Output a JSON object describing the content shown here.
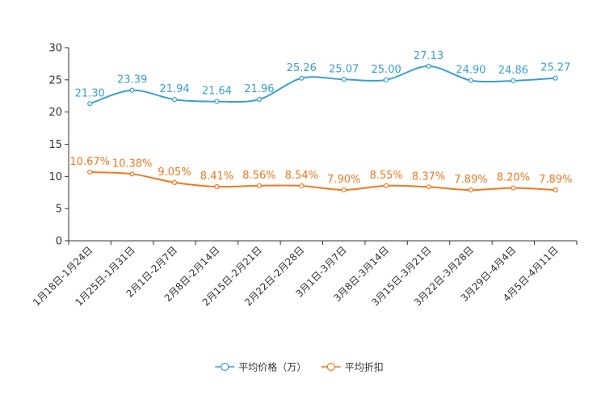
{
  "chart_data": {
    "type": "line",
    "title": "",
    "xlabel": "",
    "ylabel": "",
    "ylim": [
      0,
      30
    ],
    "yticks": [
      0,
      5,
      10,
      15,
      20,
      25,
      30
    ],
    "grid": false,
    "legend_position": "bottom-center",
    "categories": [
      "1月18日-1月24日",
      "1月25日-1月31日",
      "2月1日-2月7日",
      "2月8日-2月14日",
      "2月15日-2月21日",
      "2月22日-2月28日",
      "3月1日-3月7日",
      "3月8日-3月14日",
      "3月15日-3月21日",
      "3月22日-3月28日",
      "3月29日-4月4日",
      "4月5日-4月11日"
    ],
    "series": [
      {
        "name": "平均价格（万）",
        "color": "#3a9fd0",
        "values": [
          21.3,
          23.39,
          21.94,
          21.64,
          21.96,
          25.26,
          25.07,
          25.0,
          27.13,
          24.9,
          24.86,
          25.27
        ],
        "labels": [
          "21.30",
          "23.39",
          "21.94",
          "21.64",
          "21.96",
          "25.26",
          "25.07",
          "25.00",
          "27.13",
          "24.90",
          "24.86",
          "25.27"
        ]
      },
      {
        "name": "平均折扣",
        "color": "#f07820",
        "values": [
          10.67,
          10.38,
          9.05,
          8.41,
          8.56,
          8.54,
          7.9,
          8.55,
          8.37,
          7.89,
          8.2,
          7.89
        ],
        "labels": [
          "10.67%",
          "10.38%",
          "9.05%",
          "8.41%",
          "8.56%",
          "8.54%",
          "7.90%",
          "8.55%",
          "8.37%",
          "7.89%",
          "8.20%",
          "7.89%"
        ]
      }
    ]
  }
}
